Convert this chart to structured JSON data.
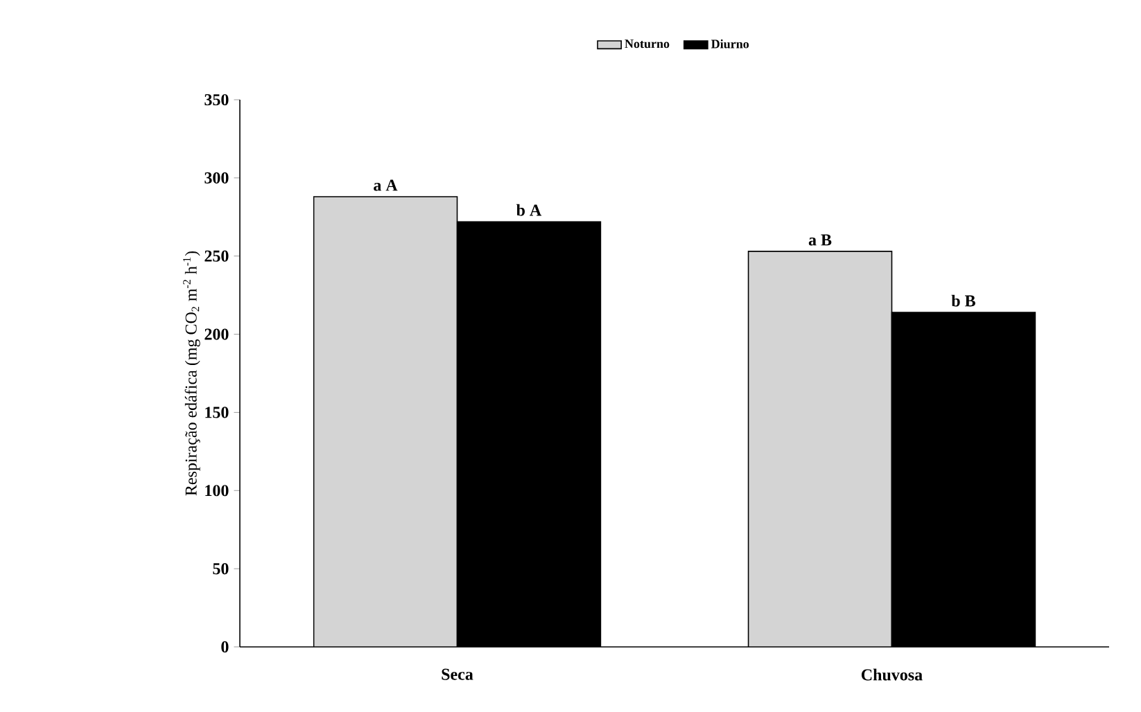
{
  "chart_data": {
    "type": "bar",
    "ylabel": "Respiração edáfica (mg CO$_{2}$ m$^{-2}$ h$^{-1}$)",
    "categories": [
      "Seca",
      "Chuvosa"
    ],
    "series": [
      {
        "name": "Noturno",
        "color": "#d4d4d4",
        "values": [
          288,
          253
        ]
      },
      {
        "name": "Diurno",
        "color": "#000000",
        "values": [
          272,
          214
        ]
      }
    ],
    "ylim": [
      0,
      350
    ],
    "yticks": [
      0,
      50,
      100,
      150,
      200,
      250,
      300,
      350
    ],
    "grid": false,
    "legend": "top",
    "annotations": [
      "a A",
      "b A",
      "a B",
      "b B"
    ]
  }
}
